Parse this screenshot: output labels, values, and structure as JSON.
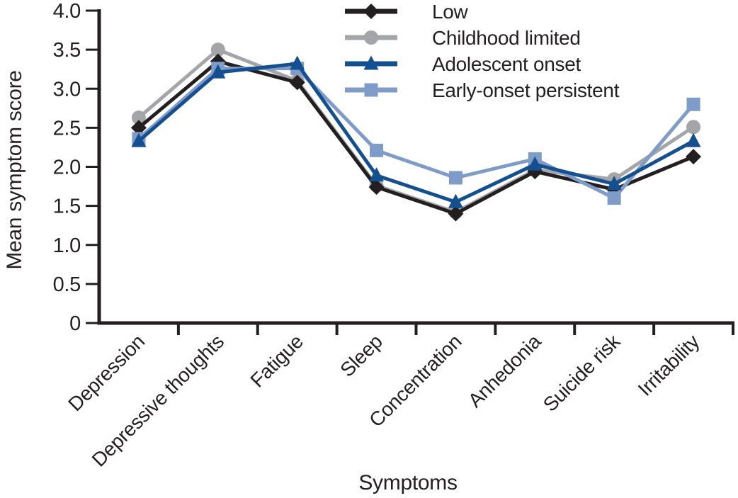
{
  "chart_data": {
    "type": "line",
    "title": "",
    "xlabel": "Symptoms",
    "ylabel": "Mean symptom score",
    "ylim": [
      0,
      4.0
    ],
    "ytick_labels": [
      "4.0",
      "3.5",
      "3.0",
      "2.5",
      "2.0",
      "1.5",
      "1.0",
      "0.5",
      "0"
    ],
    "ytick_values": [
      4.0,
      3.5,
      3.0,
      2.5,
      2.0,
      1.5,
      1.0,
      0.5,
      0
    ],
    "grid": false,
    "legend_position": "top-center",
    "categories": [
      "Depression",
      "Depressive thoughts",
      "Fatigue",
      "Sleep",
      "Concentration",
      "Anhedonia",
      "Suicide risk",
      "Irritability"
    ],
    "series": [
      {
        "name": "Low",
        "marker": "diamond",
        "color": "#231f20",
        "values": [
          2.5,
          3.35,
          3.08,
          1.74,
          1.4,
          1.94,
          1.71,
          2.13
        ]
      },
      {
        "name": "Childhood limited",
        "marker": "circle",
        "color": "#a3a5a8",
        "values": [
          2.63,
          3.5,
          3.1,
          1.76,
          1.42,
          1.96,
          1.84,
          2.51
        ]
      },
      {
        "name": "Adolescent onset",
        "marker": "triangle",
        "color": "#14508f",
        "values": [
          2.33,
          3.21,
          3.32,
          1.89,
          1.55,
          2.03,
          1.78,
          2.33
        ]
      },
      {
        "name": "Early-onset persistent",
        "marker": "square",
        "color": "#7f9bc8",
        "values": [
          2.36,
          3.26,
          3.26,
          2.21,
          1.86,
          2.1,
          1.6,
          2.8
        ]
      }
    ],
    "axis_color": "#231f20"
  }
}
